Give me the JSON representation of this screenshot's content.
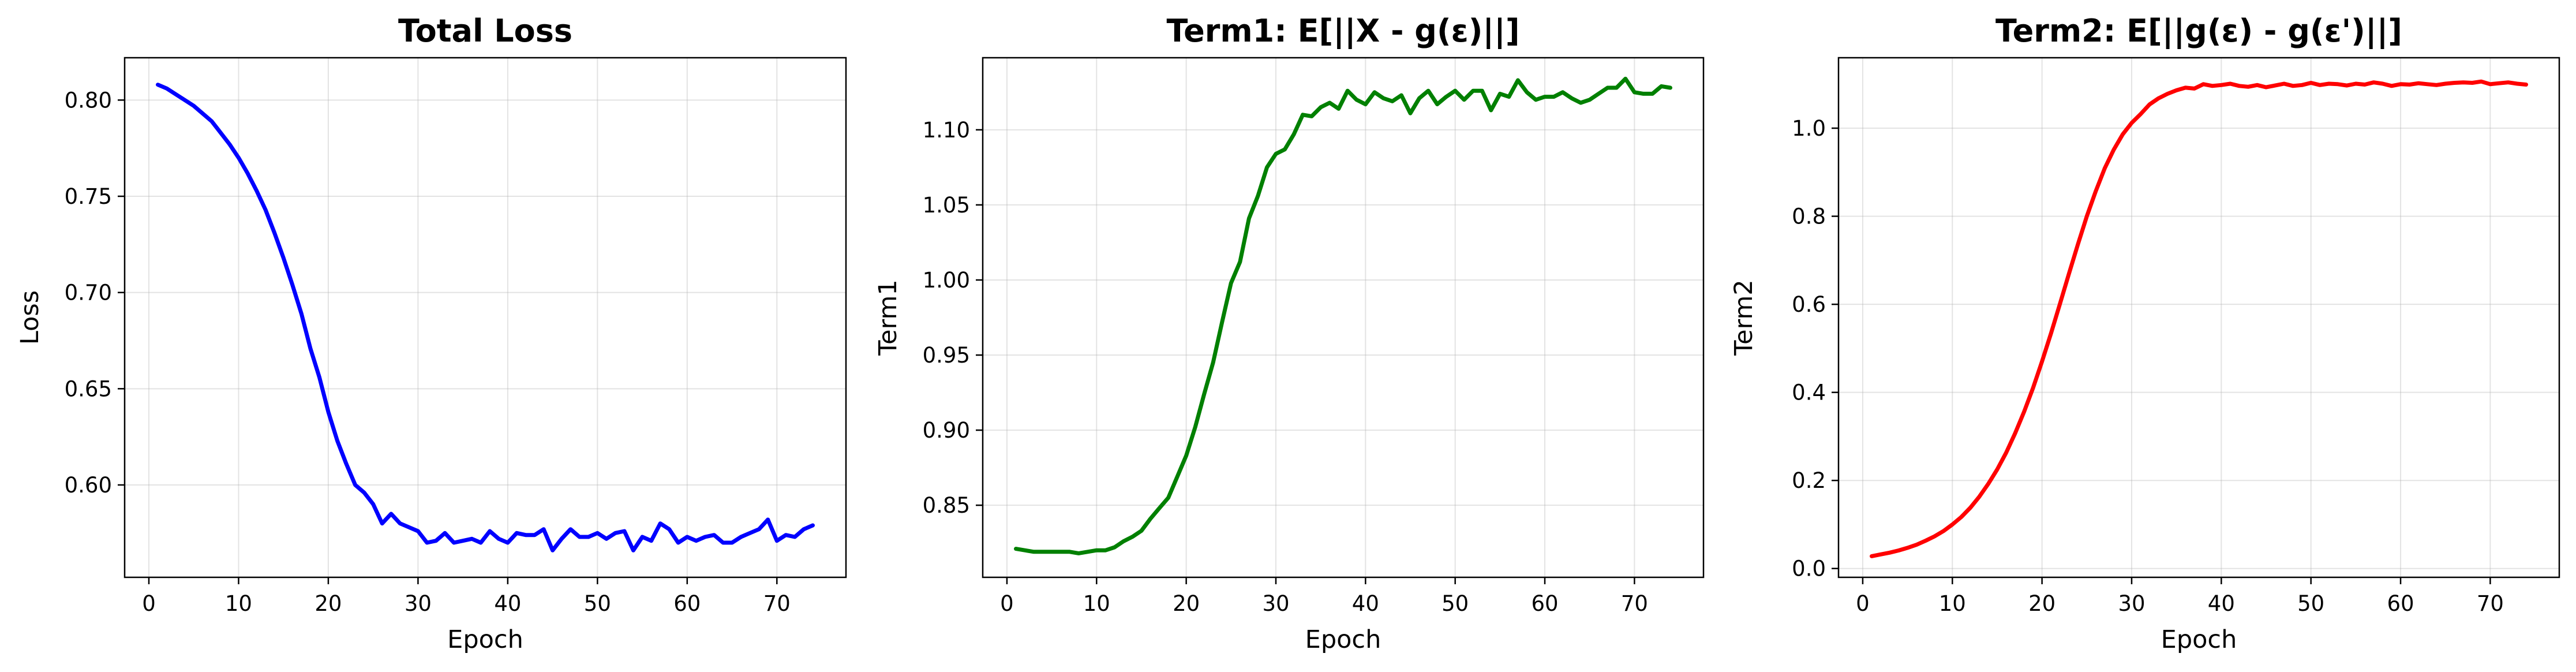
{
  "chart_data": [
    {
      "type": "line",
      "title": "Total Loss",
      "xlabel": "Epoch",
      "ylabel": "Loss",
      "xlim": [
        -2.7,
        77.7
      ],
      "ylim": [
        0.552,
        0.822
      ],
      "xticks": [
        0,
        10,
        20,
        30,
        40,
        50,
        60,
        70
      ],
      "yticks": [
        0.6,
        0.65,
        0.7,
        0.75,
        0.8
      ],
      "ytick_labels": [
        "0.60",
        "0.65",
        "0.70",
        "0.75",
        "0.80"
      ],
      "grid": true,
      "series": [
        {
          "color": "#0000ff",
          "x": [
            1,
            2,
            3,
            4,
            5,
            6,
            7,
            8,
            9,
            10,
            11,
            12,
            13,
            14,
            15,
            16,
            17,
            18,
            19,
            20,
            21,
            22,
            23,
            24,
            25,
            26,
            27,
            28,
            29,
            30,
            31,
            32,
            33,
            34,
            35,
            36,
            37,
            38,
            39,
            40,
            41,
            42,
            43,
            44,
            45,
            46,
            47,
            48,
            49,
            50,
            51,
            52,
            53,
            54,
            55,
            56,
            57,
            58,
            59,
            60,
            61,
            62,
            63,
            64,
            65,
            66,
            67,
            68,
            69,
            70,
            71,
            72,
            73,
            74
          ],
          "y": [
            0.808,
            0.806,
            0.803,
            0.8,
            0.797,
            0.793,
            0.789,
            0.783,
            0.777,
            0.77,
            0.762,
            0.753,
            0.743,
            0.731,
            0.718,
            0.704,
            0.689,
            0.671,
            0.656,
            0.638,
            0.623,
            0.611,
            0.6,
            0.596,
            0.59,
            0.58,
            0.585,
            0.58,
            0.578,
            0.576,
            0.57,
            0.571,
            0.575,
            0.57,
            0.571,
            0.572,
            0.57,
            0.576,
            0.572,
            0.57,
            0.575,
            0.574,
            0.574,
            0.577,
            0.566,
            0.572,
            0.577,
            0.573,
            0.573,
            0.575,
            0.572,
            0.575,
            0.576,
            0.566,
            0.573,
            0.571,
            0.58,
            0.577,
            0.57,
            0.573,
            0.571,
            0.573,
            0.574,
            0.57,
            0.57,
            0.573,
            0.575,
            0.577,
            0.582,
            0.571,
            0.574,
            0.573,
            0.577,
            0.579
          ]
        }
      ]
    },
    {
      "type": "line",
      "title": "Term1: E[||X - g(ε)||]",
      "xlabel": "Epoch",
      "ylabel": "Term1",
      "xlim": [
        -2.7,
        77.7
      ],
      "ylim": [
        0.802,
        1.148
      ],
      "xticks": [
        0,
        10,
        20,
        30,
        40,
        50,
        60,
        70
      ],
      "yticks": [
        0.85,
        0.9,
        0.95,
        1.0,
        1.05,
        1.1
      ],
      "ytick_labels": [
        "0.85",
        "0.90",
        "0.95",
        "1.00",
        "1.05",
        "1.10"
      ],
      "grid": true,
      "series": [
        {
          "color": "#008000",
          "x": [
            1,
            2,
            3,
            4,
            5,
            6,
            7,
            8,
            9,
            10,
            11,
            12,
            13,
            14,
            15,
            16,
            17,
            18,
            19,
            20,
            21,
            22,
            23,
            24,
            25,
            26,
            27,
            28,
            29,
            30,
            31,
            32,
            33,
            34,
            35,
            36,
            37,
            38,
            39,
            40,
            41,
            42,
            43,
            44,
            45,
            46,
            47,
            48,
            49,
            50,
            51,
            52,
            53,
            54,
            55,
            56,
            57,
            58,
            59,
            60,
            61,
            62,
            63,
            64,
            65,
            66,
            67,
            68,
            69,
            70,
            71,
            72,
            73,
            74
          ],
          "y": [
            0.821,
            0.82,
            0.819,
            0.819,
            0.819,
            0.819,
            0.819,
            0.818,
            0.819,
            0.82,
            0.82,
            0.822,
            0.826,
            0.829,
            0.833,
            0.841,
            0.848,
            0.855,
            0.869,
            0.883,
            0.902,
            0.924,
            0.945,
            0.972,
            0.998,
            1.012,
            1.041,
            1.056,
            1.075,
            1.084,
            1.087,
            1.097,
            1.11,
            1.109,
            1.115,
            1.118,
            1.114,
            1.126,
            1.12,
            1.117,
            1.125,
            1.121,
            1.119,
            1.123,
            1.111,
            1.121,
            1.126,
            1.117,
            1.122,
            1.126,
            1.12,
            1.126,
            1.126,
            1.113,
            1.124,
            1.122,
            1.133,
            1.125,
            1.12,
            1.122,
            1.122,
            1.125,
            1.121,
            1.118,
            1.12,
            1.124,
            1.128,
            1.128,
            1.134,
            1.125,
            1.124,
            1.124,
            1.129,
            1.128
          ]
        }
      ]
    },
    {
      "type": "line",
      "title": "Term2: E[||g(ε) - g(ε')||]",
      "xlabel": "Epoch",
      "ylabel": "Term2",
      "xlim": [
        -2.7,
        77.7
      ],
      "ylim": [
        -0.02,
        1.16
      ],
      "xticks": [
        0,
        10,
        20,
        30,
        40,
        50,
        60,
        70
      ],
      "yticks": [
        0.0,
        0.2,
        0.4,
        0.6,
        0.8,
        1.0
      ],
      "ytick_labels": [
        "0.0",
        "0.2",
        "0.4",
        "0.6",
        "0.8",
        "1.0"
      ],
      "grid": true,
      "series": [
        {
          "color": "#ff0000",
          "x": [
            1,
            2,
            3,
            4,
            5,
            6,
            7,
            8,
            9,
            10,
            11,
            12,
            13,
            14,
            15,
            16,
            17,
            18,
            19,
            20,
            21,
            22,
            23,
            24,
            25,
            26,
            27,
            28,
            29,
            30,
            31,
            32,
            33,
            34,
            35,
            36,
            37,
            38,
            39,
            40,
            41,
            42,
            43,
            44,
            45,
            46,
            47,
            48,
            49,
            50,
            51,
            52,
            53,
            54,
            55,
            56,
            57,
            58,
            59,
            60,
            61,
            62,
            63,
            64,
            65,
            66,
            67,
            68,
            69,
            70,
            71,
            72,
            73,
            74
          ],
          "y": [
            0.028,
            0.032,
            0.036,
            0.041,
            0.047,
            0.054,
            0.063,
            0.073,
            0.085,
            0.1,
            0.117,
            0.138,
            0.163,
            0.192,
            0.225,
            0.263,
            0.307,
            0.356,
            0.41,
            0.47,
            0.534,
            0.601,
            0.669,
            0.736,
            0.8,
            0.857,
            0.909,
            0.951,
            0.986,
            1.012,
            1.032,
            1.054,
            1.068,
            1.078,
            1.086,
            1.092,
            1.09,
            1.1,
            1.096,
            1.098,
            1.101,
            1.096,
            1.094,
            1.098,
            1.093,
            1.097,
            1.101,
            1.096,
            1.098,
            1.103,
            1.098,
            1.101,
            1.1,
            1.097,
            1.101,
            1.099,
            1.104,
            1.101,
            1.096,
            1.1,
            1.099,
            1.102,
            1.1,
            1.098,
            1.101,
            1.103,
            1.104,
            1.103,
            1.106,
            1.1,
            1.102,
            1.104,
            1.101,
            1.099
          ]
        }
      ]
    }
  ]
}
